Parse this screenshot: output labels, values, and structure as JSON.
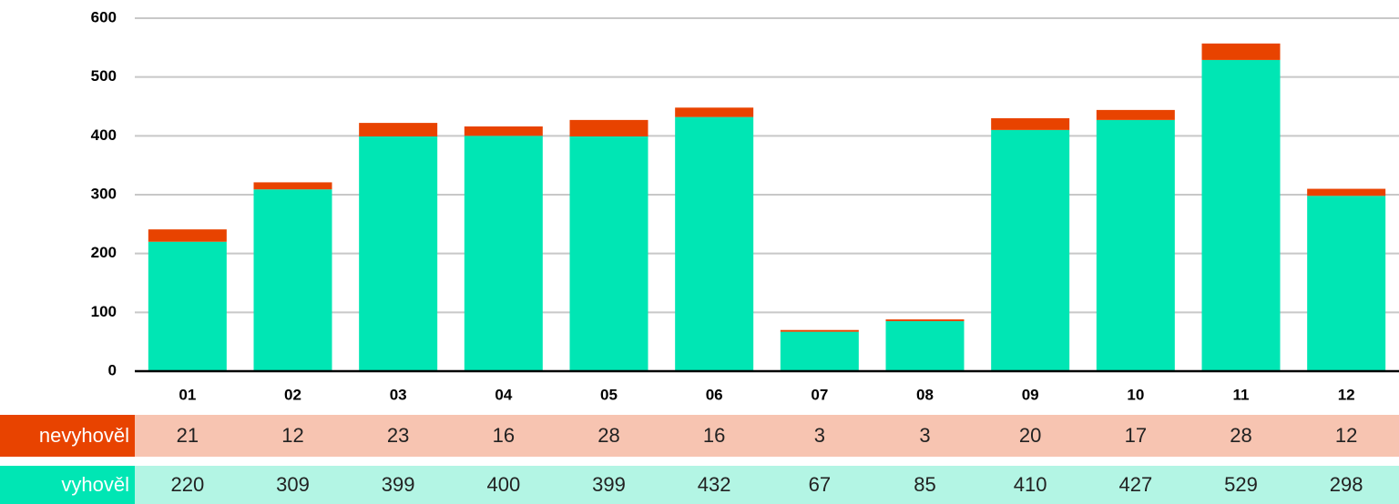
{
  "chart_data": {
    "type": "stacked_bar",
    "categories": [
      "01",
      "02",
      "03",
      "04",
      "05",
      "06",
      "07",
      "08",
      "09",
      "10",
      "11",
      "12"
    ],
    "series": [
      {
        "name": "vyhověl",
        "color": "#00e6b4",
        "table_color": "#b3f5e4",
        "values": [
          220,
          309,
          399,
          400,
          399,
          432,
          67,
          85,
          410,
          427,
          529,
          298
        ]
      },
      {
        "name": "nevyhověl",
        "color": "#e84300",
        "table_color": "#f7c4b1",
        "values": [
          21,
          12,
          23,
          16,
          28,
          16,
          3,
          3,
          20,
          17,
          28,
          12
        ]
      }
    ],
    "ylim": [
      0,
      600
    ],
    "yticks": [
      0,
      100,
      200,
      300,
      400,
      500,
      600
    ],
    "grid": true
  }
}
